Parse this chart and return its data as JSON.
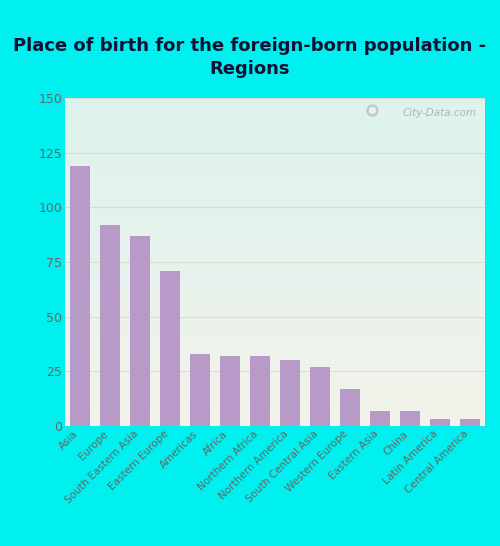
{
  "title": "Place of birth for the foreign-born population -\nRegions",
  "categories": [
    "Asia",
    "Europe",
    "South Eastern Asia",
    "Eastern Europe",
    "Americas",
    "Africa",
    "Northern Africa",
    "Northern America",
    "South Central Asia",
    "Western Europe",
    "Eastern Asia",
    "China",
    "Latin America",
    "Central America"
  ],
  "values": [
    119,
    92,
    87,
    71,
    33,
    32,
    32,
    30,
    27,
    17,
    7,
    7,
    3,
    3
  ],
  "bar_color": "#b89ac8",
  "background_outer": "#00efef",
  "background_plot_top": "#ddf2ee",
  "background_plot_bottom": "#f2f2ea",
  "grid_color": "#ddddcc",
  "title_color": "#111133",
  "tick_color": "#666666",
  "ylim": [
    0,
    150
  ],
  "yticks": [
    0,
    25,
    50,
    75,
    100,
    125,
    150
  ],
  "title_fontsize": 13,
  "ytick_fontsize": 9,
  "xtick_fontsize": 7.5,
  "watermark_text": "City-Data.com"
}
